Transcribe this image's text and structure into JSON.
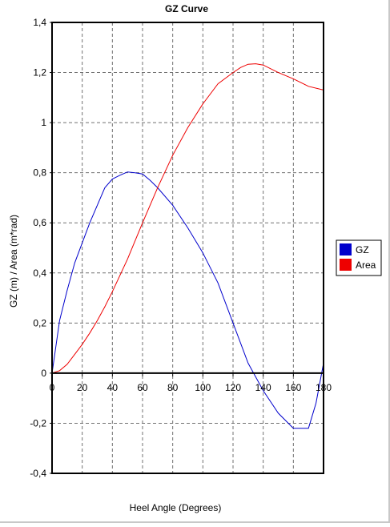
{
  "chart_data": {
    "type": "line",
    "title": "GZ Curve",
    "xlabel": "Heel Angle (Degrees)",
    "ylabel": "GZ (m) / Area (m*rad)",
    "xlim": [
      0,
      180
    ],
    "ylim": [
      -0.4,
      1.4
    ],
    "x_ticks": [
      0,
      20,
      40,
      60,
      80,
      100,
      120,
      140,
      160,
      180
    ],
    "x_tick_labels": [
      "0",
      "20",
      "40",
      "60",
      "80",
      "100",
      "120",
      "140",
      "160",
      "180"
    ],
    "y_ticks": [
      -0.4,
      -0.2,
      0,
      0.2,
      0.4,
      0.6,
      0.8,
      1,
      1.2,
      1.4
    ],
    "y_tick_labels": [
      "-0,4",
      "-0,2",
      "0",
      "0,2",
      "0,4",
      "0,6",
      "0,8",
      "1",
      "1,2",
      "1,4"
    ],
    "grid": true,
    "legend_position": "right",
    "series": [
      {
        "name": "GZ",
        "color": "#0000cc",
        "x": [
          0,
          5,
          10,
          15,
          20,
          25,
          30,
          35,
          40,
          45,
          50,
          55,
          60,
          65,
          70,
          80,
          90,
          100,
          110,
          120,
          130,
          140,
          150,
          160,
          170,
          175,
          180
        ],
        "y": [
          0,
          0.21,
          0.33,
          0.44,
          0.52,
          0.6,
          0.67,
          0.74,
          0.775,
          0.79,
          0.803,
          0.8,
          0.795,
          0.77,
          0.74,
          0.67,
          0.58,
          0.48,
          0.36,
          0.2,
          0.04,
          -0.07,
          -0.16,
          -0.22,
          -0.22,
          -0.12,
          0.04
        ]
      },
      {
        "name": "Area",
        "color": "#ee0000",
        "x": [
          0,
          5,
          10,
          15,
          20,
          25,
          30,
          35,
          40,
          50,
          60,
          70,
          80,
          90,
          100,
          110,
          120,
          125,
          130,
          135,
          140,
          150,
          160,
          170,
          180
        ],
        "y": [
          0,
          0.01,
          0.035,
          0.075,
          0.115,
          0.16,
          0.21,
          0.265,
          0.325,
          0.455,
          0.6,
          0.74,
          0.87,
          0.98,
          1.075,
          1.155,
          1.2,
          1.22,
          1.233,
          1.235,
          1.23,
          1.2,
          1.175,
          1.145,
          1.13
        ]
      }
    ]
  }
}
